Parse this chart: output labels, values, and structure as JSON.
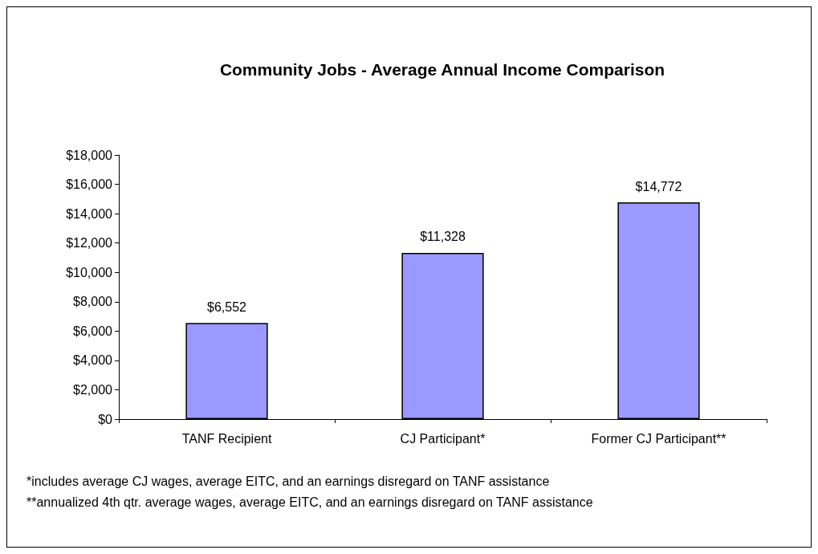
{
  "chart_data": {
    "type": "bar",
    "title": "Community Jobs - Average Annual Income Comparison",
    "categories": [
      "TANF Recipient",
      "CJ Participant*",
      "Former CJ Participant**"
    ],
    "values": [
      6552,
      11328,
      14772
    ],
    "value_labels": [
      "$6,552",
      "$11,328",
      "$14,772"
    ],
    "color": "#9999ff",
    "ylim": [
      0,
      18000
    ],
    "yticks": [
      {
        "value": 0,
        "label": "$0"
      },
      {
        "value": 2000,
        "label": "$2,000"
      },
      {
        "value": 4000,
        "label": "$4,000"
      },
      {
        "value": 6000,
        "label": "$6,000"
      },
      {
        "value": 8000,
        "label": "$8,000"
      },
      {
        "value": 10000,
        "label": "$10,000"
      },
      {
        "value": 12000,
        "label": "$12,000"
      },
      {
        "value": 14000,
        "label": "$14,000"
      },
      {
        "value": 16000,
        "label": "$16,000"
      },
      {
        "value": 18000,
        "label": "$18,000"
      }
    ],
    "grid": false,
    "annotations": [
      "*includes average CJ wages, average EITC, and an earnings disregard on TANF assistance",
      "**annualized 4th qtr. average wages, average EITC, and an earnings disregard on TANF assistance"
    ]
  }
}
